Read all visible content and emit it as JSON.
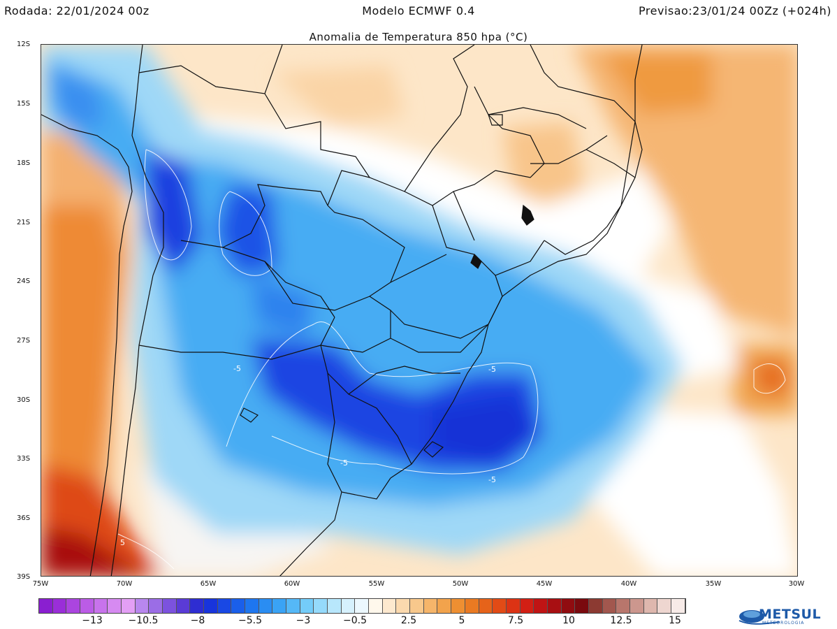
{
  "header": {
    "left": "Rodada: 22/01/2024 00z",
    "center": "Modelo ECMWF 0.4",
    "right": "Previsao:23/01/24 00Zz (+024h)"
  },
  "map": {
    "title": "Anomalia de Temperatura 850 hpa (°C)",
    "lat_labels": [
      "12S",
      "15S",
      "18S",
      "21S",
      "24S",
      "27S",
      "30S",
      "33S",
      "36S",
      "39S"
    ],
    "lon_labels": [
      "75W",
      "70W",
      "65W",
      "60W",
      "55W",
      "50W",
      "45W",
      "40W",
      "35W",
      "30W"
    ],
    "contour_labels": [
      "-5",
      "-5",
      "-5",
      "-5",
      "5"
    ]
  },
  "colorbar": {
    "labels": [
      "−13",
      "−10.5",
      "−8",
      "−5.5",
      "−3",
      "−0.5",
      "2.5",
      "5",
      "7.5",
      "10",
      "12.5",
      "15"
    ],
    "colors": [
      "#8a1fd0",
      "#9a2ed8",
      "#ab45df",
      "#bb5ce6",
      "#c873ec",
      "#d68af1",
      "#e39ff5",
      "#b887ee",
      "#9b6de6",
      "#7c52de",
      "#5a3bd6",
      "#2e2dd2",
      "#1834dc",
      "#1948e4",
      "#1a5fea",
      "#1e76ef",
      "#2a8df2",
      "#3aa3f5",
      "#55b8f7",
      "#74ccf9",
      "#95dafb",
      "#b8e7fc",
      "#d6f1fd",
      "#ecf8fe",
      "#fff8ec",
      "#fde9cf",
      "#fbd9ae",
      "#f8c88c",
      "#f6b56a",
      "#f2a34c",
      "#ee8f32",
      "#ea7a22",
      "#e6631a",
      "#e24b16",
      "#dc3314",
      "#d21f14",
      "#c01414",
      "#a80f12",
      "#900c10",
      "#7a0a0e",
      "#8c3a32",
      "#a2574e",
      "#b8766c",
      "#cc978e",
      "#deb7ae",
      "#eed6d0",
      "#f7ebe8"
    ]
  },
  "logo": {
    "name": "METSUL",
    "sub": "METEOROLOGIA"
  },
  "colors": {
    "cold_deep": "#1a3ee6",
    "cold_mid": "#2e9cf0",
    "cold_light": "#a8dcf8",
    "neutral": "#ffffff",
    "warm_light": "#fbdcb4",
    "warm_mid": "#f3a55a",
    "warm_deep": "#c2180f"
  }
}
